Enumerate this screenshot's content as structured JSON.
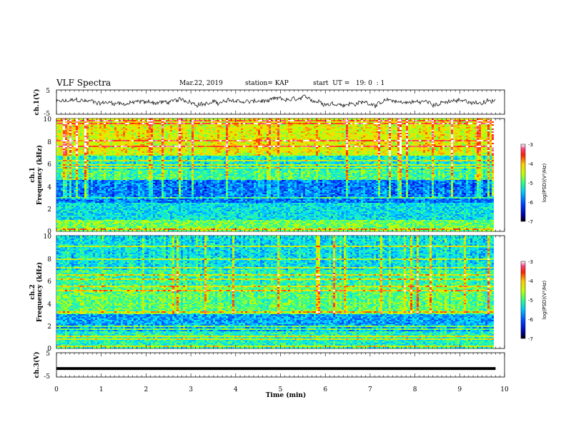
{
  "header": {
    "title": "VLF Spectra",
    "date": "Mar.22, 2019",
    "station": "station= KAP",
    "start_ut": "start  UT =   19: 0  : 1"
  },
  "colors": {
    "waveform": "#000000",
    "colormap": [
      "#000080",
      "#0000ff",
      "#00a0ff",
      "#00ffff",
      "#30ff80",
      "#c0ff00",
      "#ffff00",
      "#ff8000",
      "#ff0000",
      "#ffffff"
    ]
  },
  "chart_data": [
    {
      "type": "line",
      "panel": "ch1-waveform",
      "ylabel": "ch.1(V)",
      "ylim": [
        -5,
        5
      ],
      "yticks": [
        "5",
        "-5"
      ],
      "xlim": [
        0,
        10
      ],
      "x_end": 9.8,
      "description_level": "noisy waveform fluctuating roughly between -2 and 2 V"
    },
    {
      "type": "heatmap",
      "panel": "ch1-spectrogram",
      "ylabel": "ch.1\nFrequency (kHz)",
      "ylabel_line1": "ch.1",
      "ylabel_line2": "Frequency (kHz)",
      "ylim": [
        0,
        10
      ],
      "yticks": [
        "0",
        "2",
        "4",
        "6",
        "8",
        "10"
      ],
      "xlim": [
        0,
        10
      ],
      "x_end": 9.8,
      "colorbar": {
        "label": "log(PSD)(V²/Hz)",
        "range": [
          -7,
          -3
        ],
        "ticks": [
          "-3",
          "-4",
          "-5",
          "-6",
          "-7"
        ]
      }
    },
    {
      "type": "heatmap",
      "panel": "ch2-spectrogram",
      "ylabel_line1": "ch.2",
      "ylabel_line2": "Frequency (kHz)",
      "ylim": [
        0,
        10
      ],
      "yticks": [
        "0",
        "2",
        "4",
        "6",
        "8",
        "10"
      ],
      "xlim": [
        0,
        10
      ],
      "x_end": 9.8,
      "colorbar": {
        "label": "log(PSD)(V²/Hz)",
        "range": [
          -7,
          -3
        ],
        "ticks": [
          "-3",
          "-4",
          "-5",
          "-6",
          "-7"
        ]
      }
    },
    {
      "type": "line",
      "panel": "ch3-waveform",
      "ylabel": "ch.3(V)",
      "ylim": [
        -5,
        5
      ],
      "yticks": [
        "5",
        "-5"
      ],
      "xlim": [
        0,
        10
      ],
      "x_end": 9.8,
      "constant_value": -1.5,
      "xlabel": "Time (min)",
      "xticks": [
        "0",
        "1",
        "2",
        "3",
        "4",
        "5",
        "6",
        "7",
        "8",
        "9",
        "10"
      ]
    }
  ]
}
